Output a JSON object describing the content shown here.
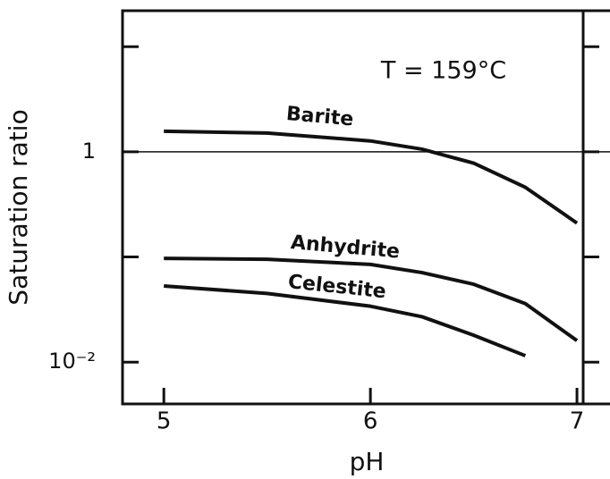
{
  "chart_data": {
    "type": "line",
    "annotation": "T = 159°C",
    "xlabel": "pH",
    "ylabel": "Saturation ratio",
    "x": [
      5,
      5.5,
      6,
      6.25,
      6.5,
      6.75,
      7
    ],
    "series": [
      {
        "name": "Barite",
        "color": "#111111",
        "values": [
          1.57,
          1.51,
          1.27,
          1.06,
          0.78,
          0.46,
          0.21
        ]
      },
      {
        "name": "Anhydrite",
        "color": "#111111",
        "values": [
          0.097,
          0.095,
          0.085,
          0.071,
          0.055,
          0.036,
          0.016
        ]
      },
      {
        "name": "Celestite",
        "color": "#111111",
        "values": [
          0.053,
          0.045,
          0.034,
          0.027,
          0.018,
          0.0115,
          null
        ]
      }
    ],
    "xlim": [
      4.8,
      7.03
    ],
    "xticks": [
      5,
      6,
      7
    ],
    "ylim": [
      0.004,
      22
    ],
    "ylog": true,
    "yticks": [
      {
        "value": 0.01,
        "label": "10⁻²"
      },
      1
    ],
    "yminor": [
      0.1,
      10
    ],
    "hline": 1
  }
}
